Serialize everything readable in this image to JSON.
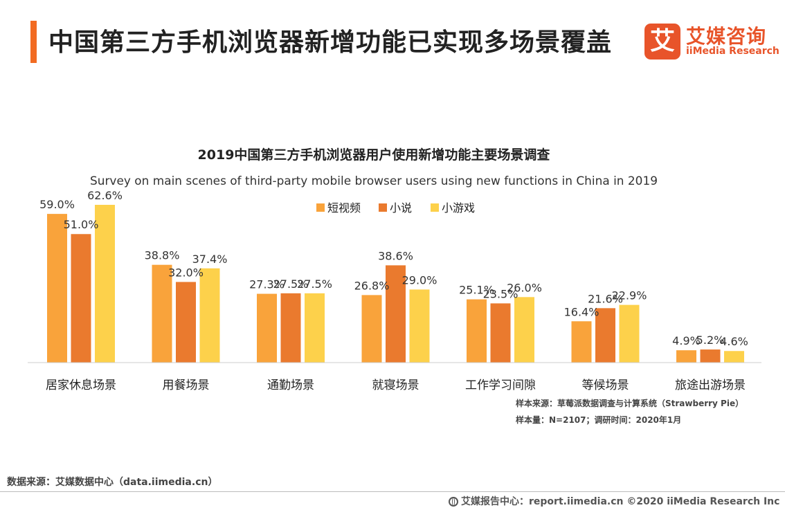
{
  "header": {
    "title": "中国第三方手机浏览器新增功能已实现多场景覆盖",
    "logo_mark": "艾",
    "logo_cn": "艾媒咨询",
    "logo_en": "iiMedia Research"
  },
  "colors": {
    "accent": "#f26b22",
    "series": [
      "#f9a33b",
      "#ea7a2e",
      "#fdd14b"
    ]
  },
  "chart_data": {
    "type": "bar",
    "title": "2019中国第三方手机浏览器用户使用新增功能主要场景调查",
    "subtitle": "Survey on main scenes of third-party mobile browser users using new functions in China in 2019",
    "categories": [
      "居家休息场景",
      "用餐场景",
      "通勤场景",
      "就寝场景",
      "工作学习间隙",
      "等候场景",
      "旅途出游场景"
    ],
    "series": [
      {
        "name": "短视频",
        "values": [
          59.0,
          38.8,
          27.3,
          26.8,
          25.1,
          16.4,
          4.9
        ]
      },
      {
        "name": "小说",
        "values": [
          51.0,
          32.0,
          27.5,
          38.6,
          23.5,
          21.6,
          5.2
        ]
      },
      {
        "name": "小游戏",
        "values": [
          62.6,
          37.4,
          27.5,
          29.0,
          26.0,
          22.9,
          4.6
        ]
      }
    ],
    "value_suffix": "%",
    "ylim": [
      0,
      62.6
    ],
    "legend_position": "top-center",
    "grid": false,
    "xlabel": "",
    "ylabel": ""
  },
  "notes": {
    "sample_source": "样本来源：草莓派数据调查与计算系统（Strawberry Pie）",
    "sample_size": "样本量：N=2107；调研时间：2020年1月"
  },
  "footer": {
    "data_source": "数据来源：艾媒数据中心（data.iimedia.cn）",
    "report_center": "艾媒报告中心：report.iimedia.cn ©2020 iiMedia Research Inc"
  }
}
